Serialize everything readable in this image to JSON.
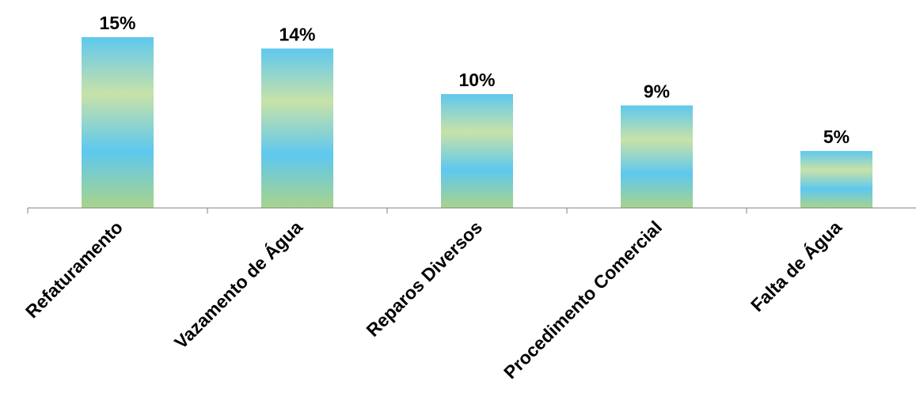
{
  "chart_data": {
    "type": "bar",
    "categories": [
      "Refaturamento",
      "Vazamento de Água",
      "Reparos Diversos",
      "Procedimento Comercial",
      "Falta de Água"
    ],
    "values": [
      15,
      14,
      10,
      9,
      5
    ],
    "value_labels": [
      "15%",
      "14%",
      "10%",
      "9%",
      "5%"
    ],
    "title": "",
    "xlabel": "",
    "ylabel": "",
    "ylim": [
      0,
      15
    ],
    "grid": false,
    "legend": "none",
    "colors": {
      "gradient_stops": [
        "#a8d48c",
        "#5ec8ef",
        "#c8e2a8",
        "#5ec8ef"
      ],
      "axis": "#808080",
      "text": "#000000"
    }
  }
}
